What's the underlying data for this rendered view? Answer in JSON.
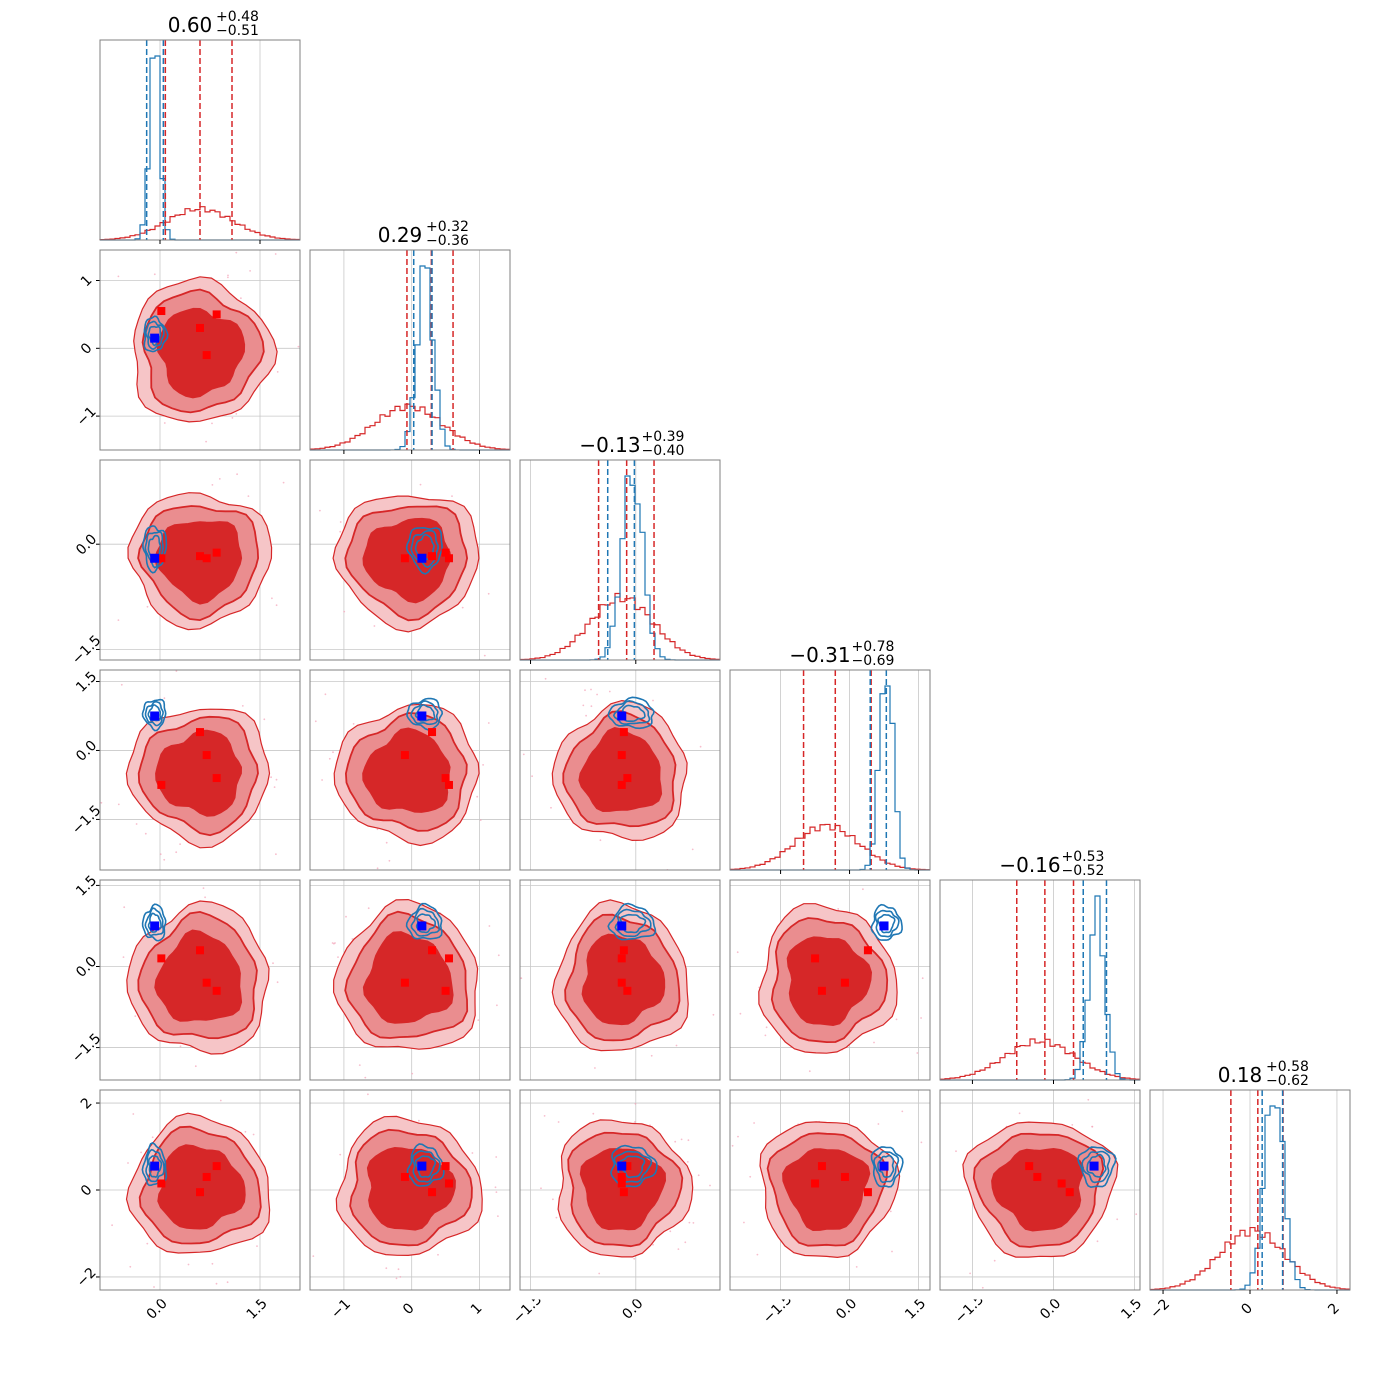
{
  "chart_data": {
    "type": "corner",
    "n_params": 6,
    "colors": {
      "posterior_a": "#d62728",
      "posterior_b": "#1f77b4",
      "marker_a": "#ff0000",
      "marker_b": "#0000ff"
    },
    "grid": true,
    "params": [
      {
        "title_median": "0.60",
        "title_plus": "+0.48",
        "title_minus": "−0.51",
        "range": [
          -0.9,
          2.1
        ],
        "ticks": [
          {
            "v": 0.0,
            "label": "0.0"
          },
          {
            "v": 1.5,
            "label": "1.5"
          }
        ]
      },
      {
        "title_median": "0.29",
        "title_plus": "+0.32",
        "title_minus": "−0.36",
        "range": [
          -1.5,
          1.45
        ],
        "ticks": [
          {
            "v": -1,
            "label": "−1"
          },
          {
            "v": 0,
            "label": "0"
          },
          {
            "v": 1,
            "label": "1"
          }
        ]
      },
      {
        "title_median": "−0.13",
        "title_plus": "+0.39",
        "title_minus": "−0.40",
        "range": [
          -1.65,
          1.2
        ],
        "ticks": [
          {
            "v": -1.5,
            "label": "−1.5"
          },
          {
            "v": 0.0,
            "label": "0.0"
          }
        ]
      },
      {
        "title_median": "−0.31",
        "title_plus": "+0.78",
        "title_minus": "−0.69",
        "range": [
          -2.6,
          1.75
        ],
        "ticks": [
          {
            "v": -1.5,
            "label": "−1.5"
          },
          {
            "v": 0.0,
            "label": "0.0"
          },
          {
            "v": 1.5,
            "label": "1.5"
          }
        ]
      },
      {
        "title_median": "−0.16",
        "title_plus": "+0.53",
        "title_minus": "−0.52",
        "range": [
          -2.1,
          1.6
        ],
        "ticks": [
          {
            "v": -1.5,
            "label": "−1.5"
          },
          {
            "v": 0.0,
            "label": "0.0"
          },
          {
            "v": 1.5,
            "label": "1.5"
          }
        ]
      },
      {
        "title_median": "0.18",
        "title_plus": "+0.58",
        "title_minus": "−0.62",
        "range": [
          -2.3,
          2.3
        ],
        "ticks": [
          {
            "v": -2,
            "label": "−2"
          },
          {
            "v": 0,
            "label": "0"
          },
          {
            "v": 2,
            "label": "2"
          }
        ]
      }
    ],
    "posterior_a": {
      "means": [
        0.6,
        -0.05,
        -0.2,
        -0.5,
        -0.25,
        0.05
      ],
      "sds": [
        0.5,
        0.5,
        0.45,
        0.7,
        0.65,
        0.75
      ],
      "quantiles": [
        [
          0.08,
          0.6,
          1.08
        ],
        [
          -0.07,
          0.29,
          0.61
        ],
        [
          -0.53,
          -0.13,
          0.26
        ],
        [
          -1.0,
          -0.31,
          0.47
        ],
        [
          -0.68,
          -0.16,
          0.37
        ],
        [
          -0.44,
          0.18,
          0.76
        ]
      ]
    },
    "posterior_b": {
      "means": [
        -0.08,
        0.2,
        -0.05,
        0.8,
        0.8,
        0.55
      ],
      "sds": [
        0.08,
        0.12,
        0.15,
        0.15,
        0.15,
        0.22
      ],
      "quantiles": [
        [
          -0.2,
          0.05
        ],
        [
          0.03,
          0.3
        ],
        [
          -0.4,
          -0.02
        ],
        [
          0.45,
          0.8
        ],
        [
          0.55,
          0.98
        ],
        [
          0.28,
          0.75
        ]
      ]
    },
    "marker_b_point": [
      -0.08,
      0.15,
      -0.2,
      0.75,
      0.75,
      0.55
    ],
    "marker_a_points": [
      [
        0.02,
        0.55,
        -0.2,
        -0.75,
        0.15,
        0.15
      ],
      [
        0.6,
        0.3,
        -0.17,
        0.4,
        0.3,
        -0.05
      ],
      [
        0.85,
        0.5,
        -0.12,
        -0.6,
        -0.45,
        0.55
      ],
      [
        0.7,
        -0.1,
        -0.2,
        -0.1,
        -0.3,
        0.3
      ]
    ]
  }
}
